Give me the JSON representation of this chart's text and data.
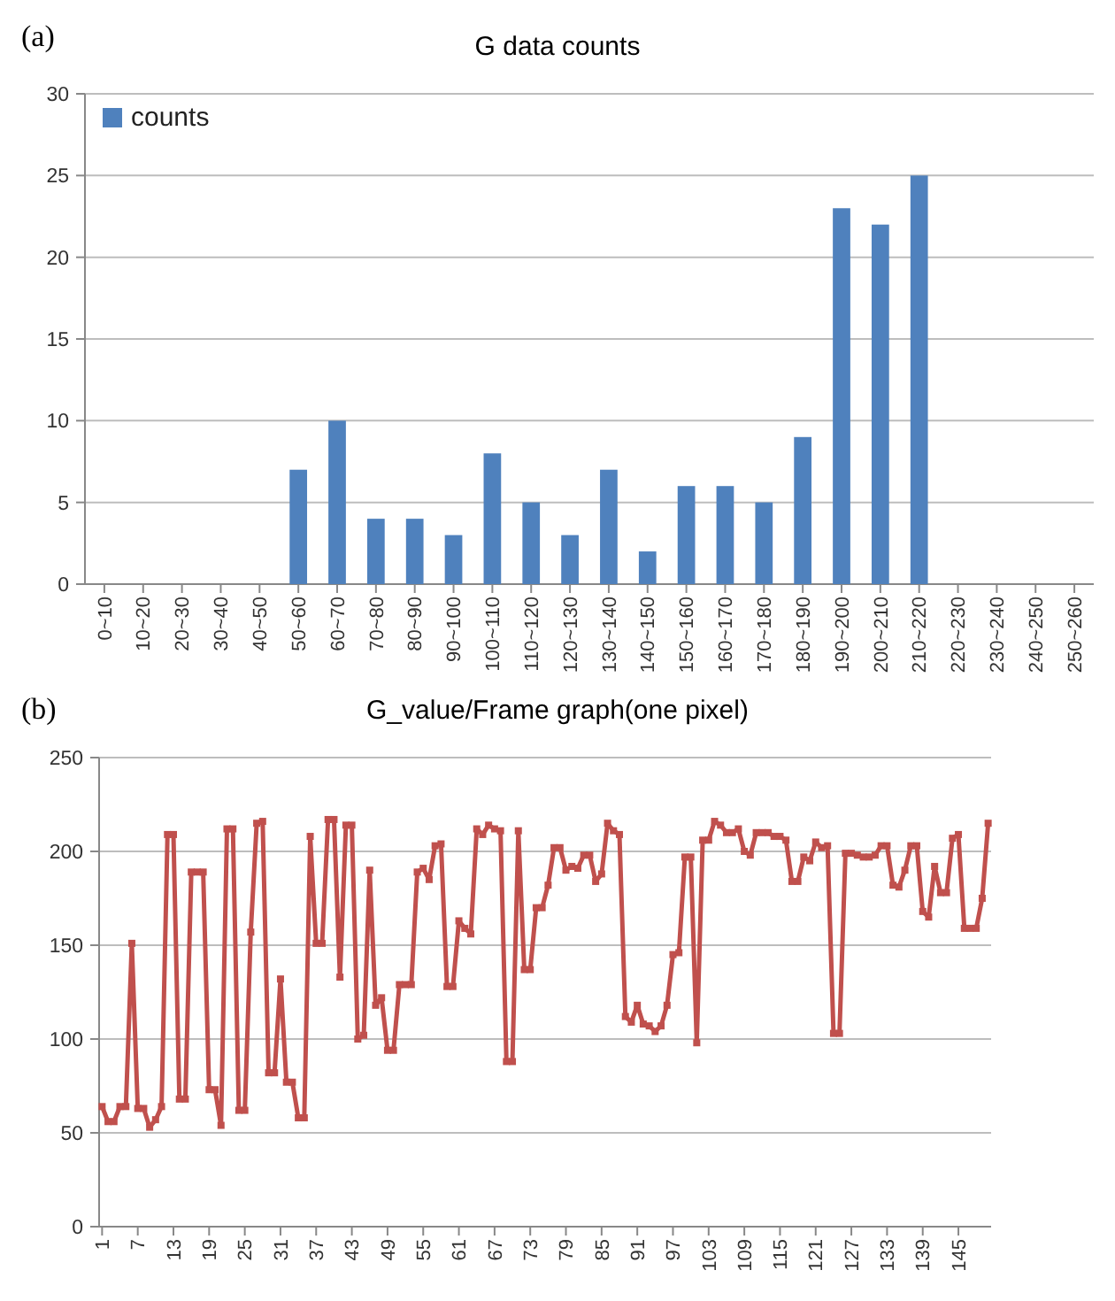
{
  "chart_data": [
    {
      "type": "bar",
      "title": "G data counts",
      "annotations": [
        "(a)"
      ],
      "categories": [
        "0~10",
        "10~20",
        "20~30",
        "30~40",
        "40~50",
        "50~60",
        "60~70",
        "70~80",
        "80~90",
        "90~100",
        "100~110",
        "110~120",
        "120~130",
        "130~140",
        "140~150",
        "150~160",
        "160~170",
        "170~180",
        "180~190",
        "190~200",
        "200~210",
        "210~220",
        "220~230",
        "230~240",
        "240~250",
        "250~260"
      ],
      "series": [
        {
          "name": "counts",
          "color": "#4f81bd",
          "values": [
            0,
            0,
            0,
            0,
            0,
            7,
            10,
            4,
            4,
            3,
            8,
            5,
            3,
            7,
            2,
            6,
            6,
            5,
            9,
            23,
            22,
            25,
            0,
            0,
            0,
            0
          ]
        }
      ],
      "ylim": [
        0,
        30
      ],
      "yticks": [
        0,
        5,
        10,
        15,
        20,
        25,
        30
      ],
      "grid": "y",
      "legend": "top left"
    },
    {
      "type": "line",
      "title": "G_value/Frame graph(one pixel)",
      "annotations": [
        "(b)"
      ],
      "x": [
        1,
        2,
        3,
        4,
        5,
        6,
        7,
        8,
        9,
        10,
        11,
        12,
        13,
        14,
        15,
        16,
        17,
        18,
        19,
        20,
        21,
        22,
        23,
        24,
        25,
        26,
        27,
        28,
        29,
        30,
        31,
        32,
        33,
        34,
        35,
        36,
        37,
        38,
        39,
        40,
        41,
        42,
        43,
        44,
        45,
        46,
        47,
        48,
        49,
        50,
        51,
        52,
        53,
        54,
        55,
        56,
        57,
        58,
        59,
        60,
        61,
        62,
        63,
        64,
        65,
        66,
        67,
        68,
        69,
        70,
        71,
        72,
        73,
        74,
        75,
        76,
        77,
        78,
        79,
        80,
        81,
        82,
        83,
        84,
        85,
        86,
        87,
        88,
        89,
        90,
        91,
        92,
        93,
        94,
        95,
        96,
        97,
        98,
        99,
        100,
        101,
        102,
        103,
        104,
        105,
        106,
        107,
        108,
        109,
        110,
        111,
        112,
        113,
        114,
        115,
        116,
        117,
        118,
        119,
        120,
        121,
        122,
        123,
        124,
        125,
        126,
        127,
        128,
        129,
        130,
        131,
        132,
        133,
        134,
        135,
        136,
        137,
        138,
        139,
        140,
        141,
        142,
        143,
        144,
        145,
        146,
        147,
        148,
        149,
        150
      ],
      "series": [
        {
          "color": "#c0504d",
          "values": [
            64,
            56,
            56,
            64,
            64,
            151,
            63,
            63,
            53,
            57,
            64,
            209,
            209,
            68,
            68,
            189,
            189,
            189,
            73,
            73,
            54,
            212,
            212,
            62,
            62,
            157,
            215,
            216,
            82,
            82,
            132,
            77,
            77,
            58,
            58,
            208,
            151,
            151,
            217,
            217,
            133,
            214,
            214,
            100,
            102,
            190,
            118,
            122,
            94,
            94,
            129,
            129,
            129,
            189,
            191,
            185,
            203,
            204,
            128,
            128,
            163,
            159,
            156,
            212,
            209,
            214,
            212,
            211,
            88,
            88,
            211,
            137,
            137,
            170,
            170,
            182,
            202,
            202,
            190,
            192,
            191,
            198,
            198,
            184,
            188,
            215,
            211,
            209,
            112,
            109,
            118,
            108,
            107,
            104,
            107,
            118,
            145,
            146,
            197,
            197,
            98,
            206,
            206,
            216,
            214,
            210,
            210,
            212,
            200,
            198,
            210,
            210,
            210,
            208,
            208,
            206,
            184,
            184,
            197,
            195,
            205,
            202,
            203,
            103,
            103,
            199,
            199,
            198,
            197,
            197,
            198,
            203,
            203,
            182,
            181,
            190,
            203,
            203,
            168,
            165,
            192,
            178,
            178,
            207,
            209,
            159,
            159,
            159,
            175,
            215
          ]
        }
      ],
      "xlim": [
        0.5,
        150.5
      ],
      "xticks": [
        1,
        7,
        13,
        19,
        25,
        31,
        37,
        43,
        49,
        55,
        61,
        67,
        73,
        79,
        85,
        91,
        97,
        103,
        109,
        115,
        121,
        127,
        133,
        139,
        145
      ],
      "ylim": [
        0,
        250
      ],
      "yticks": [
        0,
        50,
        100,
        150,
        200,
        250
      ],
      "grid": "y",
      "marker": "square"
    }
  ]
}
